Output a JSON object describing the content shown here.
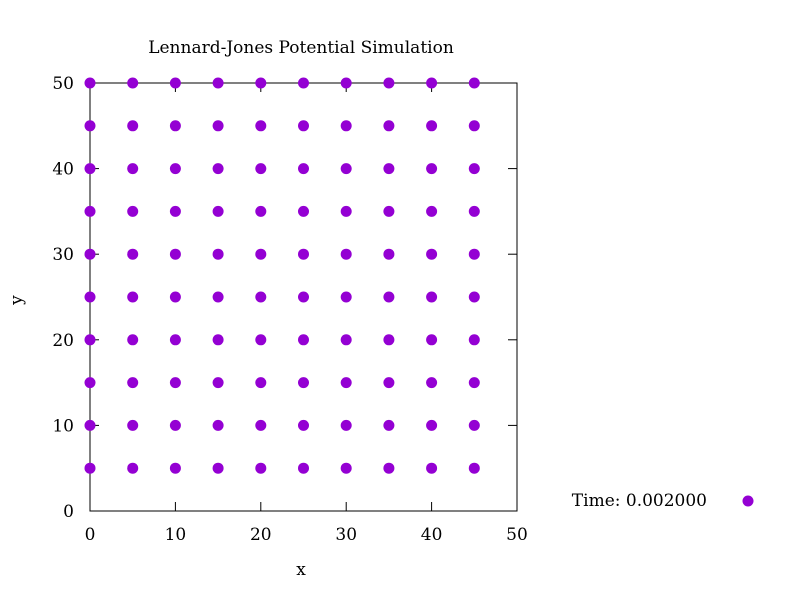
{
  "chart_data": {
    "type": "scatter",
    "title": "Lennard-Jones Potential Simulation",
    "xlabel": "x",
    "ylabel": "y",
    "xlim": [
      0,
      50
    ],
    "ylim": [
      0,
      50
    ],
    "x_ticks": [
      0,
      10,
      20,
      30,
      40,
      50
    ],
    "y_ticks": [
      0,
      10,
      20,
      30,
      40,
      50
    ],
    "grid": false,
    "legend_position": "outside-right-bottom",
    "series": [
      {
        "name": "Time: 0.002000",
        "color": "#9400d3",
        "marker": "circle",
        "points": [
          [
            0,
            5
          ],
          [
            5,
            5
          ],
          [
            10,
            5
          ],
          [
            15,
            5
          ],
          [
            20,
            5
          ],
          [
            25,
            5
          ],
          [
            30,
            5
          ],
          [
            35,
            5
          ],
          [
            40,
            5
          ],
          [
            45,
            5
          ],
          [
            0,
            10
          ],
          [
            5,
            10
          ],
          [
            10,
            10
          ],
          [
            15,
            10
          ],
          [
            20,
            10
          ],
          [
            25,
            10
          ],
          [
            30,
            10
          ],
          [
            35,
            10
          ],
          [
            40,
            10
          ],
          [
            45,
            10
          ],
          [
            0,
            15
          ],
          [
            5,
            15
          ],
          [
            10,
            15
          ],
          [
            15,
            15
          ],
          [
            20,
            15
          ],
          [
            25,
            15
          ],
          [
            30,
            15
          ],
          [
            35,
            15
          ],
          [
            40,
            15
          ],
          [
            45,
            15
          ],
          [
            0,
            20
          ],
          [
            5,
            20
          ],
          [
            10,
            20
          ],
          [
            15,
            20
          ],
          [
            20,
            20
          ],
          [
            25,
            20
          ],
          [
            30,
            20
          ],
          [
            35,
            20
          ],
          [
            40,
            20
          ],
          [
            45,
            20
          ],
          [
            0,
            25
          ],
          [
            5,
            25
          ],
          [
            10,
            25
          ],
          [
            15,
            25
          ],
          [
            20,
            25
          ],
          [
            25,
            25
          ],
          [
            30,
            25
          ],
          [
            35,
            25
          ],
          [
            40,
            25
          ],
          [
            45,
            25
          ],
          [
            0,
            30
          ],
          [
            5,
            30
          ],
          [
            10,
            30
          ],
          [
            15,
            30
          ],
          [
            20,
            30
          ],
          [
            25,
            30
          ],
          [
            30,
            30
          ],
          [
            35,
            30
          ],
          [
            40,
            30
          ],
          [
            45,
            30
          ],
          [
            0,
            35
          ],
          [
            5,
            35
          ],
          [
            10,
            35
          ],
          [
            15,
            35
          ],
          [
            20,
            35
          ],
          [
            25,
            35
          ],
          [
            30,
            35
          ],
          [
            35,
            35
          ],
          [
            40,
            35
          ],
          [
            45,
            35
          ],
          [
            0,
            40
          ],
          [
            5,
            40
          ],
          [
            10,
            40
          ],
          [
            15,
            40
          ],
          [
            20,
            40
          ],
          [
            25,
            40
          ],
          [
            30,
            40
          ],
          [
            35,
            40
          ],
          [
            40,
            40
          ],
          [
            45,
            40
          ],
          [
            0,
            45
          ],
          [
            5,
            45
          ],
          [
            10,
            45
          ],
          [
            15,
            45
          ],
          [
            20,
            45
          ],
          [
            25,
            45
          ],
          [
            30,
            45
          ],
          [
            35,
            45
          ],
          [
            40,
            45
          ],
          [
            45,
            45
          ],
          [
            0,
            50
          ],
          [
            5,
            50
          ],
          [
            10,
            50
          ],
          [
            15,
            50
          ],
          [
            20,
            50
          ],
          [
            25,
            50
          ],
          [
            30,
            50
          ],
          [
            35,
            50
          ],
          [
            40,
            50
          ],
          [
            45,
            50
          ]
        ]
      }
    ]
  }
}
